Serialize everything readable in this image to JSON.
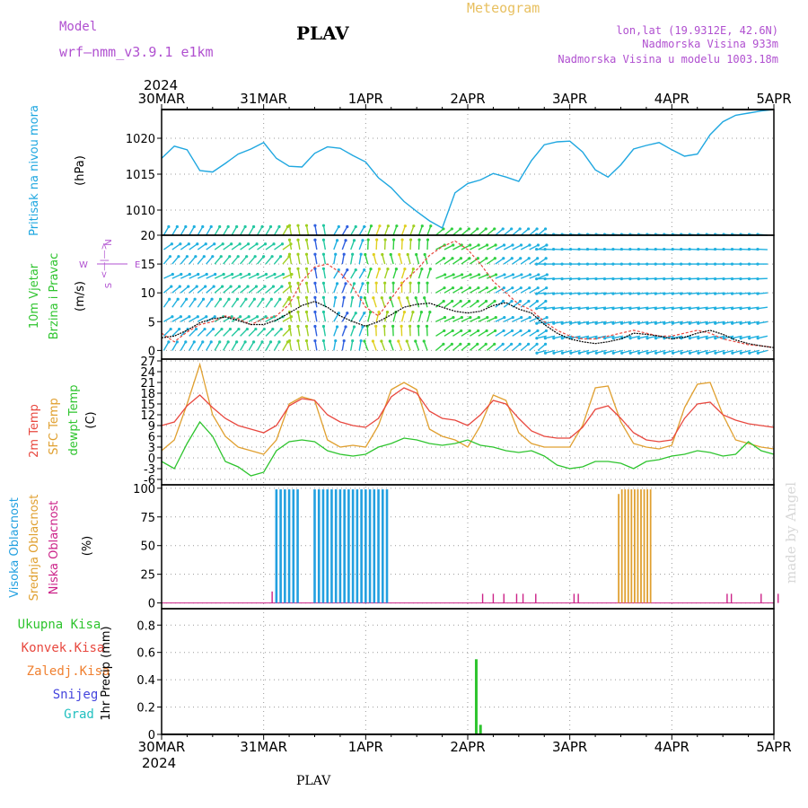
{
  "header": {
    "model_label": "Model",
    "model_name": "wrf—nmm_v3.9.1  e1km",
    "station": "PLAV",
    "product": "Meteogram",
    "lonlat": "lon,lat (19.9312E, 42.6N)",
    "elev": "Nadmorska Visina 933m",
    "elev_model": "Nadmorska Visina u modelu 1003.18m",
    "footer_station": "PLAV",
    "credit": "made by Angel"
  },
  "colors": {
    "pressure": "#1fa7e0",
    "temp2m": "#e8483f",
    "sfctemp": "#e0a030",
    "dewpt": "#2ec42e",
    "cloud_high": "#22a0e0",
    "cloud_mid": "#e0a030",
    "cloud_low": "#cc2288",
    "precip_total": "#2ec42e",
    "precip_conv": "#e8483f",
    "precip_frz": "#f08030",
    "snow": "#4444dd",
    "graupel": "#22c0c0",
    "wind_label": "#2ec42e",
    "compass": "#b050d0"
  },
  "time_axis": {
    "year": "2024",
    "days": [
      "30MAR",
      "31MAR",
      "1APR",
      "2APR",
      "3APR",
      "4APR",
      "5APR"
    ]
  },
  "chart_data": [
    {
      "type": "line",
      "panel": "pressure",
      "ylabel_main": "Pritisak na nivou mora",
      "ylabel_unit": "(hPa)",
      "yticks": [
        "1010",
        "1015",
        "1020"
      ],
      "ylim": [
        1006.5,
        1024
      ],
      "x_unit": "hours from 30MAR 00Z",
      "x": [
        0,
        3,
        6,
        9,
        12,
        15,
        18,
        21,
        24,
        27,
        30,
        33,
        36,
        39,
        42,
        45,
        48,
        51,
        54,
        57,
        60,
        63,
        66,
        69,
        72,
        75,
        78,
        81,
        84,
        87,
        90,
        93,
        96,
        99,
        102,
        105,
        108,
        111,
        114,
        117,
        120,
        123,
        126,
        129,
        132,
        135,
        138,
        141,
        144
      ],
      "series": [
        {
          "name": "Pritisak na nivou mora",
          "values": [
            1017.2,
            1018.9,
            1018.4,
            1015.5,
            1015.3,
            1016.5,
            1017.8,
            1018.5,
            1019.4,
            1017.2,
            1016.1,
            1016.0,
            1017.9,
            1018.8,
            1018.6,
            1017.6,
            1016.7,
            1014.5,
            1013.1,
            1011.2,
            1009.8,
            1008.5,
            1007.5,
            1012.4,
            1013.7,
            1014.2,
            1015.1,
            1014.6,
            1014.0,
            1016.9,
            1019.1,
            1019.5,
            1019.6,
            1018.1,
            1015.6,
            1014.6,
            1016.3,
            1018.5,
            1019.0,
            1019.4,
            1018.4,
            1017.5,
            1017.8,
            1020.5,
            1022.3,
            1023.2,
            1023.5,
            1023.8,
            1024.0
          ]
        }
      ]
    },
    {
      "type": "line",
      "panel": "wind",
      "ylabel_main": "10m Vjetar",
      "ylabel_sub": "Brzina i Pravac",
      "ylabel_unit": "(m/s)",
      "compass": {
        "n": "N",
        "s": "S",
        "e": "E",
        "w": "W",
        "arrows": "<—|—>"
      },
      "yticks": [
        "0",
        "5",
        "10",
        "15",
        "20"
      ],
      "ylim": [
        -1.5,
        20
      ],
      "x": [
        0,
        3,
        6,
        9,
        12,
        15,
        18,
        21,
        24,
        27,
        30,
        33,
        36,
        39,
        42,
        45,
        48,
        51,
        54,
        57,
        60,
        63,
        66,
        69,
        72,
        75,
        78,
        81,
        84,
        87,
        90,
        93,
        96,
        99,
        102,
        105,
        108,
        111,
        114,
        117,
        120,
        123,
        126,
        129,
        132,
        135,
        138,
        141,
        144
      ],
      "series": [
        {
          "name": "wind_speed",
          "values": [
            2.2,
            2.5,
            3.5,
            4.8,
            5.5,
            5.8,
            5.2,
            4.5,
            4.5,
            5.3,
            6.5,
            7.8,
            8.5,
            7.5,
            6.0,
            5.0,
            4.2,
            5.0,
            6.2,
            7.5,
            8.0,
            8.2,
            7.5,
            6.8,
            6.5,
            6.8,
            7.8,
            8.3,
            7.2,
            6.5,
            4.5,
            3.0,
            2.0,
            1.5,
            1.2,
            1.5,
            2.0,
            3.0,
            2.8,
            2.5,
            2.0,
            2.3,
            3.0,
            3.5,
            2.8,
            1.8,
            1.2,
            0.8,
            0.5
          ]
        },
        {
          "name": "wind_gust",
          "values": [
            3.0,
            1.5,
            3.2,
            4.5,
            5.0,
            6.0,
            5.5,
            4.5,
            5.5,
            6.0,
            8.0,
            12.0,
            14.5,
            15.0,
            13.5,
            11.0,
            7.5,
            6.0,
            9.0,
            12.0,
            14.0,
            16.5,
            18.0,
            19.0,
            17.5,
            15.0,
            12.0,
            10.0,
            8.0,
            7.0,
            5.0,
            3.5,
            2.5,
            2.0,
            2.0,
            2.5,
            3.0,
            3.5,
            3.0,
            2.5,
            2.5,
            3.0,
            3.5,
            3.0,
            2.0,
            1.5,
            1.0,
            0.8,
            0.5
          ]
        }
      ]
    },
    {
      "type": "line",
      "panel": "temperature",
      "ylabel_2m": "2m Temp",
      "ylabel_sfc": "SFC Temp",
      "ylabel_dew": "dewpt Temp",
      "ylabel_unit": "(C)",
      "yticks": [
        "-6",
        "-3",
        "0",
        "3",
        "6",
        "9",
        "12",
        "15",
        "18",
        "21",
        "24",
        "27"
      ],
      "ylim": [
        -7.5,
        27.5
      ],
      "x": [
        0,
        3,
        6,
        9,
        12,
        15,
        18,
        21,
        24,
        27,
        30,
        33,
        36,
        39,
        42,
        45,
        48,
        51,
        54,
        57,
        60,
        63,
        66,
        69,
        72,
        75,
        78,
        81,
        84,
        87,
        90,
        93,
        96,
        99,
        102,
        105,
        108,
        111,
        114,
        117,
        120,
        123,
        126,
        129,
        132,
        135,
        138,
        141,
        144
      ],
      "series": [
        {
          "name": "2m Temp",
          "values": [
            9.0,
            10.0,
            14.5,
            17.5,
            14.0,
            11.0,
            9.0,
            8.0,
            7.0,
            9.0,
            14.5,
            16.5,
            16.0,
            12.0,
            10.0,
            9.0,
            8.5,
            11.0,
            17.0,
            19.5,
            18.0,
            13.0,
            11.0,
            10.5,
            9.0,
            12.0,
            16.0,
            15.0,
            11.0,
            7.5,
            6.0,
            5.5,
            5.5,
            8.5,
            13.5,
            14.5,
            11.0,
            7.0,
            5.0,
            4.5,
            5.0,
            11.0,
            15.0,
            15.5,
            12.0,
            10.5,
            9.5,
            9.0,
            8.5
          ]
        },
        {
          "name": "SFC Temp",
          "values": [
            2.0,
            5.0,
            15.0,
            26.0,
            12.0,
            6.0,
            3.0,
            2.0,
            1.0,
            5.0,
            15.0,
            17.0,
            16.0,
            5.0,
            3.0,
            3.5,
            3.0,
            9.0,
            19.0,
            21.0,
            19.0,
            8.0,
            6.0,
            5.0,
            3.0,
            9.0,
            17.5,
            16.0,
            7.0,
            4.0,
            3.0,
            3.0,
            3.0,
            9.0,
            19.5,
            20.0,
            10.0,
            4.0,
            3.0,
            2.5,
            3.5,
            14.0,
            20.5,
            21.0,
            12.0,
            5.0,
            4.0,
            3.0,
            2.5
          ]
        },
        {
          "name": "dewpt Temp",
          "values": [
            -1.0,
            -3.0,
            4.0,
            10.0,
            6.0,
            -1.0,
            -2.5,
            -5.0,
            -4.0,
            2.0,
            4.5,
            5.0,
            4.5,
            2.0,
            1.0,
            0.5,
            1.0,
            3.0,
            4.0,
            5.5,
            5.0,
            4.0,
            3.5,
            4.0,
            5.0,
            3.5,
            3.0,
            2.0,
            1.5,
            2.0,
            0.5,
            -2.0,
            -3.0,
            -2.5,
            -1.0,
            -1.0,
            -1.5,
            -3.0,
            -1.0,
            -0.5,
            0.5,
            1.0,
            2.0,
            1.5,
            0.5,
            1.0,
            4.5,
            2.0,
            1.0
          ]
        }
      ]
    },
    {
      "type": "bar",
      "panel": "clouds",
      "ylabel_high": "Visoka Oblacnost",
      "ylabel_mid": "Srednja Oblacnost",
      "ylabel_low": "Niska Oblacnost",
      "ylabel_unit": "(%)",
      "yticks": [
        "0",
        "25",
        "50",
        "75",
        "100"
      ],
      "ylim": [
        -5,
        103
      ],
      "x_unit": "hours from 30MAR 00Z",
      "series": [
        {
          "name": "Visoka Oblacnost",
          "ranges": [
            [
              27,
              32
            ],
            [
              36,
              53
            ]
          ],
          "value": 99
        },
        {
          "name": "Srednja Oblacnost",
          "ranges": [
            [
              107.5,
              115.5
            ]
          ],
          "value": 99,
          "extra": [
            {
              "h": 107.5,
              "v": 95
            },
            {
              "h": 115.5,
              "v": 57
            }
          ]
        },
        {
          "name": "Niska Oblacnost",
          "points": [
            [
              26,
              10
            ],
            [
              75.5,
              8
            ],
            [
              78,
              8
            ],
            [
              80.5,
              8
            ],
            [
              83.5,
              8
            ],
            [
              85,
              8
            ],
            [
              88,
              8
            ],
            [
              97,
              8
            ],
            [
              98,
              8
            ],
            [
              133,
              8
            ],
            [
              134,
              8
            ],
            [
              141,
              8
            ],
            [
              145,
              8
            ]
          ]
        }
      ]
    },
    {
      "type": "bar",
      "panel": "precip",
      "ylabel_total": "Ukupna Kisa",
      "ylabel_conv": "Konvek.Kisa",
      "ylabel_frz": "Zaledj.Kisa",
      "ylabel_snow": "Snijeg",
      "ylabel_grad": "Grad",
      "ylabel_unit": "1hr Precip (mm)",
      "yticks": [
        "0",
        "0.2",
        "0.4",
        "0.6",
        "0.8"
      ],
      "ylim": [
        0,
        0.92
      ],
      "x": [
        74,
        75
      ],
      "series": [
        {
          "name": "Ukupna Kisa",
          "values": [
            0.55,
            0.07
          ]
        }
      ]
    }
  ]
}
